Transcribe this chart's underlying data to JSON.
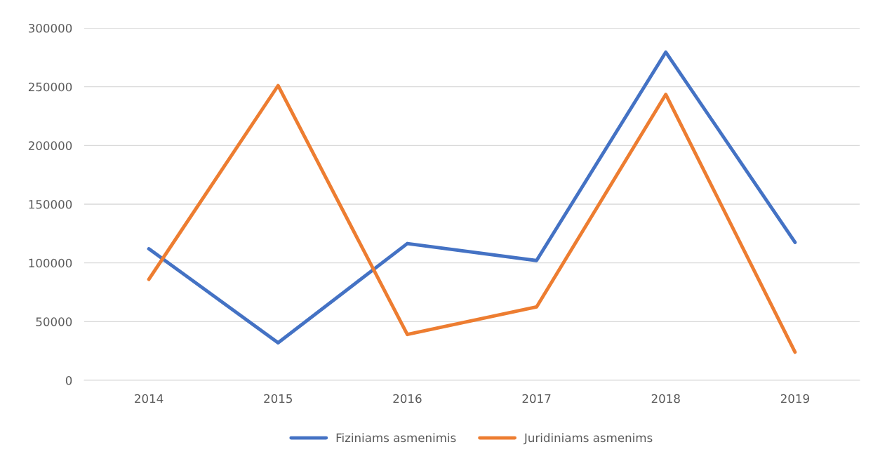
{
  "chart_data": {
    "type": "line",
    "categories": [
      "2014",
      "2015",
      "2016",
      "2017",
      "2018",
      "2019"
    ],
    "series": [
      {
        "name": "Fiziniams asmenimis",
        "color": "#4472c4",
        "values": [
          112000,
          32000,
          116500,
          102000,
          279500,
          117500
        ]
      },
      {
        "name": "Juridiniams asmenims",
        "color": "#ed7d31",
        "values": [
          86000,
          251000,
          39000,
          62500,
          243500,
          24000
        ]
      }
    ],
    "ylim": [
      0,
      300000
    ],
    "yticks": [
      0,
      50000,
      100000,
      150000,
      200000,
      250000,
      300000
    ],
    "grid": "y",
    "legend": "bottom",
    "marker": "none",
    "line_style": "solid"
  }
}
